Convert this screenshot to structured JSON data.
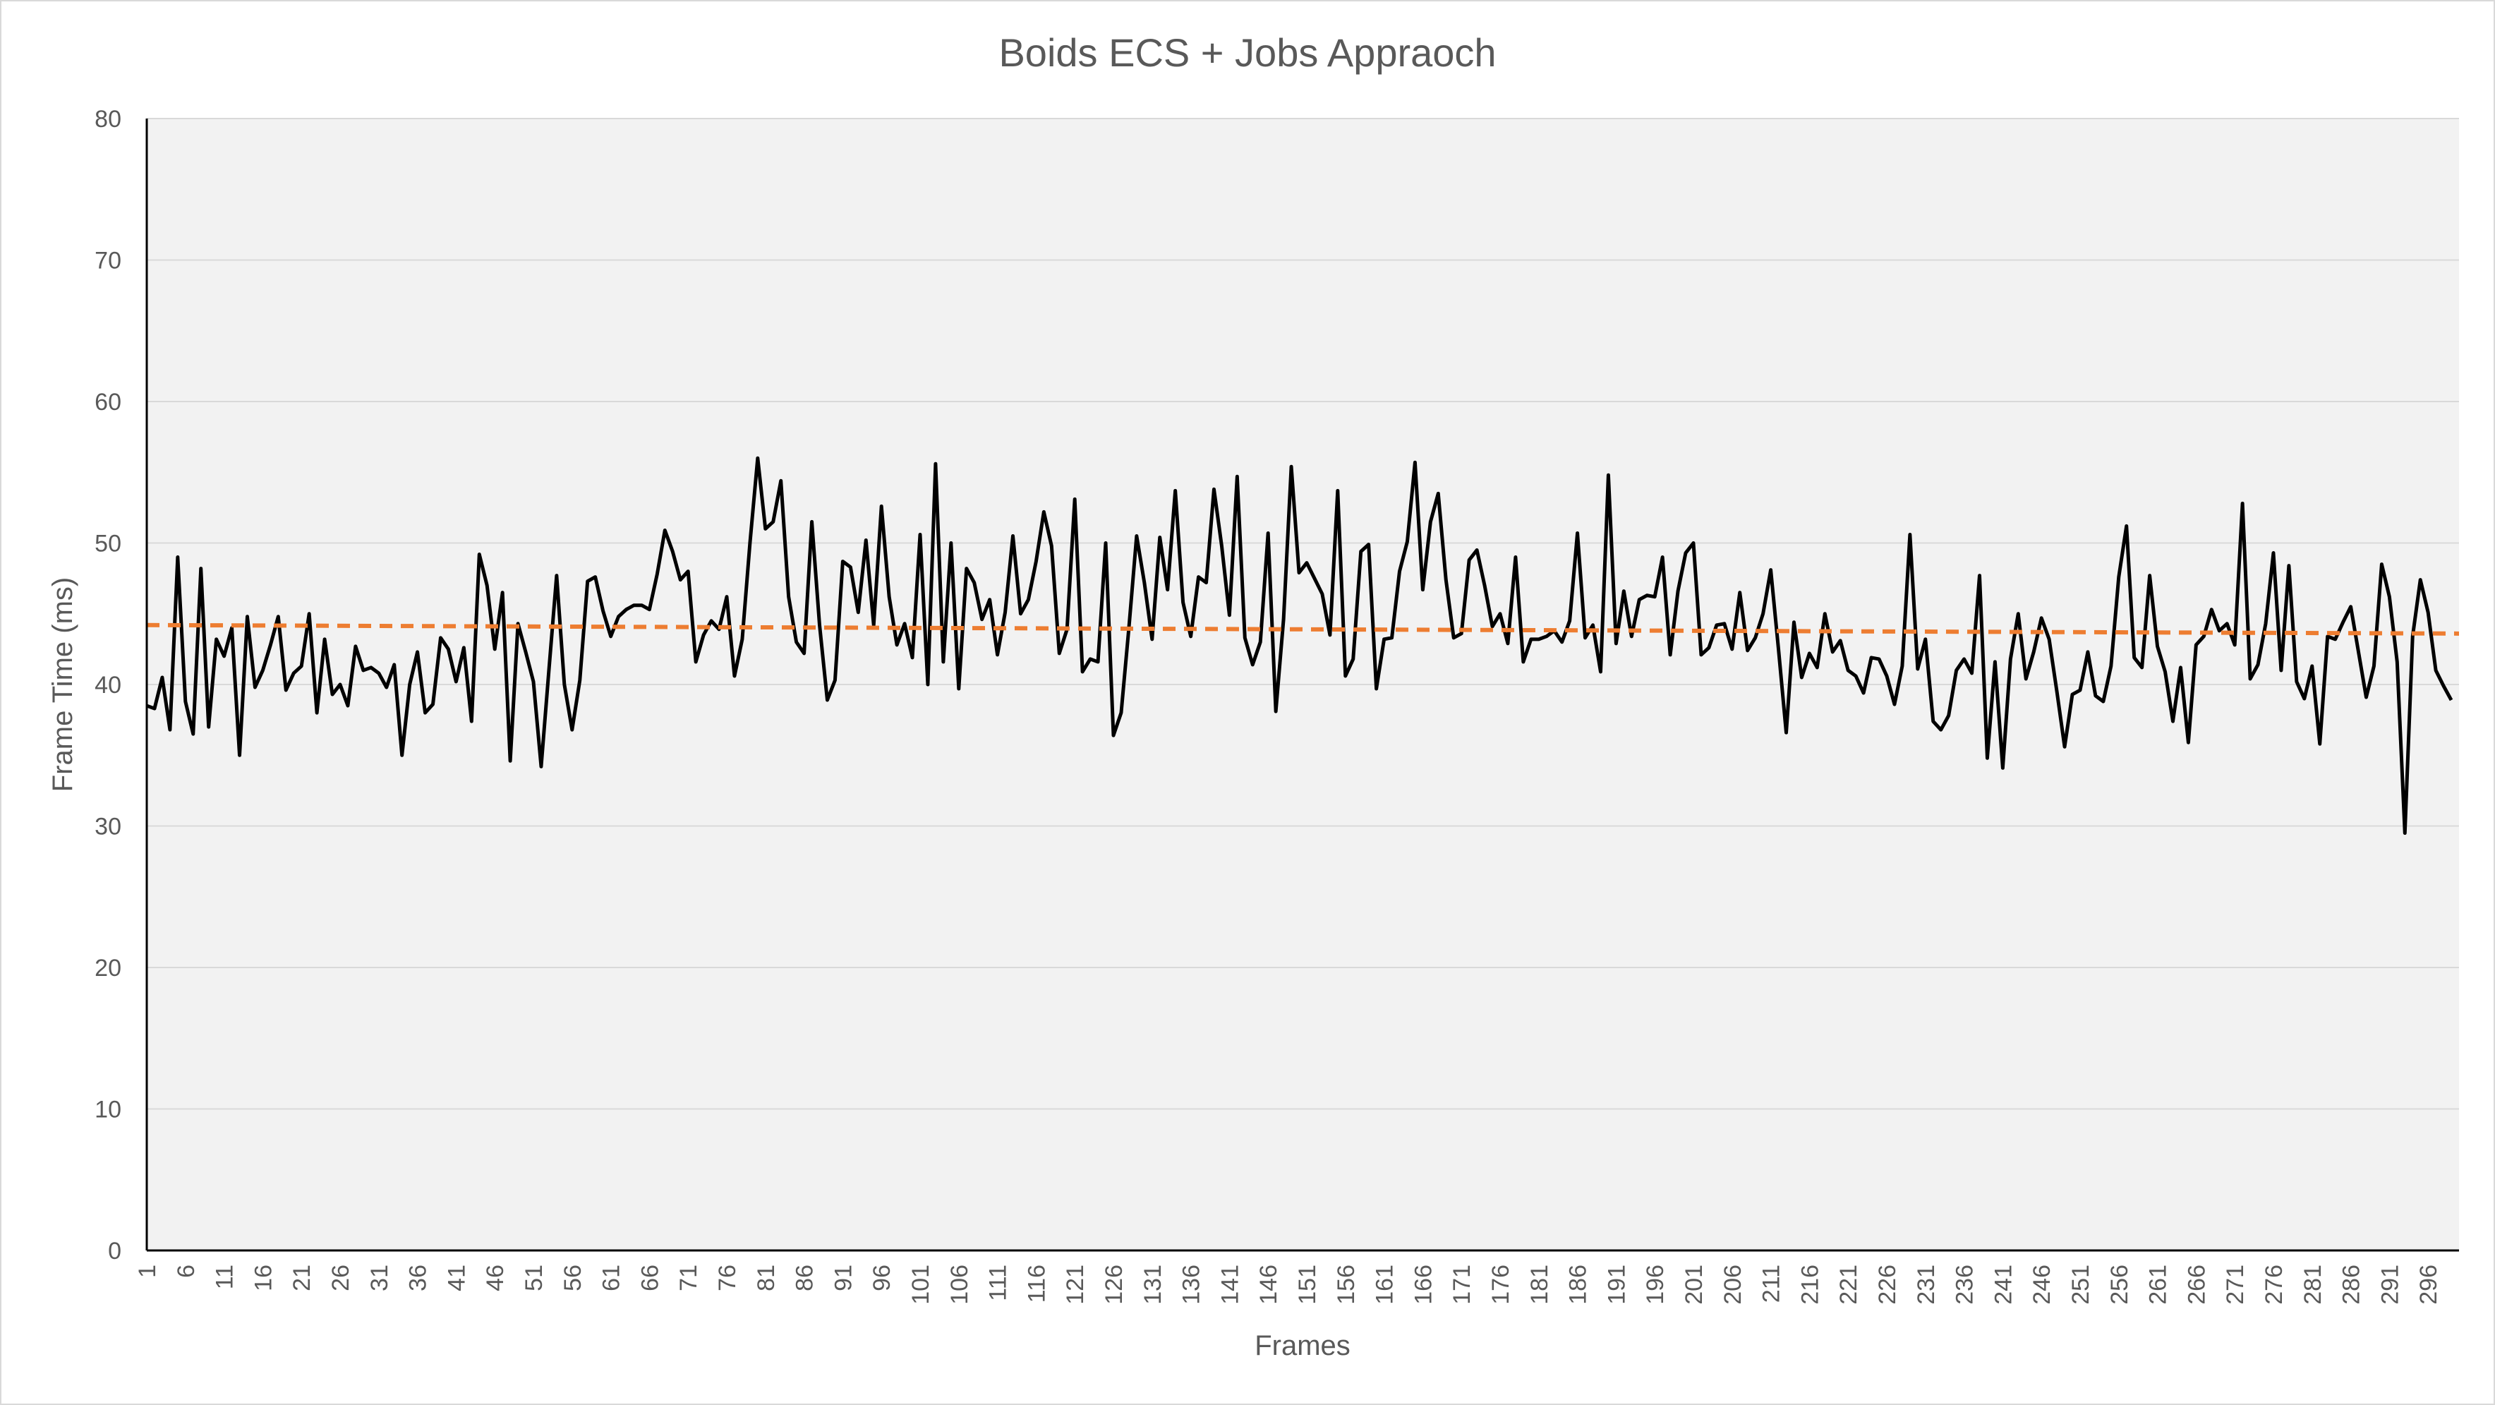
{
  "chart_data": {
    "type": "line",
    "title": "Boids ECS + Jobs Appraoch",
    "xlabel": "Frames",
    "ylabel": "Frame Time  (ms)",
    "ylim": [
      0,
      80
    ],
    "yticks": [
      0,
      10,
      20,
      30,
      40,
      50,
      60,
      70,
      80
    ],
    "xlim": [
      1,
      300
    ],
    "xticks": [
      1,
      6,
      11,
      16,
      21,
      26,
      31,
      36,
      41,
      46,
      51,
      56,
      61,
      66,
      71,
      76,
      81,
      86,
      91,
      96,
      101,
      106,
      111,
      116,
      121,
      126,
      131,
      136,
      141,
      146,
      151,
      156,
      161,
      166,
      171,
      176,
      181,
      186,
      191,
      196,
      201,
      206,
      211,
      216,
      221,
      226,
      231,
      236,
      241,
      246,
      251,
      256,
      261,
      266,
      271,
      276,
      281,
      286,
      291,
      296
    ],
    "grid": true,
    "legend": "none",
    "series": [
      {
        "style": "solid",
        "color": "#000000",
        "x_start": 1,
        "values": [
          38.5,
          38.3,
          40.5,
          36.8,
          49.0,
          38.8,
          36.5,
          48.2,
          37.0,
          43.2,
          42.0,
          44.0,
          35.0,
          44.8,
          39.8,
          41.0,
          42.8,
          44.8,
          39.6,
          40.8,
          41.3,
          45.0,
          38.0,
          43.2,
          39.3,
          40.0,
          38.5,
          42.7,
          41.0,
          41.2,
          40.8,
          39.8,
          41.4,
          35.0,
          40.0,
          42.3,
          38.0,
          38.6,
          43.3,
          42.5,
          40.2,
          42.6,
          37.4,
          49.2,
          47.0,
          42.5,
          46.5,
          34.6,
          44.3,
          42.3,
          40.2,
          34.2,
          41.0,
          47.7,
          40.0,
          36.8,
          40.3,
          47.3,
          47.6,
          45.2,
          43.4,
          44.8,
          45.3,
          45.6,
          45.6,
          45.3,
          47.8,
          50.9,
          49.4,
          47.4,
          48.0,
          41.6,
          43.5,
          44.5,
          43.9,
          46.2,
          40.6,
          43.2,
          50.0,
          56.0,
          51.0,
          51.5,
          54.4,
          46.2,
          43.0,
          42.2,
          51.5,
          44.2,
          38.9,
          40.3,
          48.7,
          48.3,
          45.1,
          50.2,
          44.2,
          52.6,
          46.2,
          42.8,
          44.3,
          41.9,
          50.6,
          40.0,
          55.6,
          41.6,
          50.0,
          39.7,
          48.2,
          47.2,
          44.6,
          46.0,
          42.1,
          45.1,
          50.5,
          45.0,
          46.0,
          48.7,
          52.2,
          49.8,
          42.2,
          43.9,
          53.1,
          40.9,
          41.8,
          41.6,
          50.0,
          36.4,
          38.0,
          44.0,
          50.5,
          47.2,
          43.2,
          50.4,
          46.7,
          53.7,
          45.8,
          43.4,
          47.6,
          47.2,
          53.8,
          49.8,
          44.9,
          54.7,
          43.3,
          41.4,
          43.0,
          50.7,
          38.1,
          44.6,
          55.4,
          47.9,
          48.6,
          47.5,
          46.4,
          43.5,
          53.7,
          40.6,
          41.8,
          49.4,
          49.9,
          39.7,
          43.2,
          43.3,
          48.0,
          50.1,
          55.7,
          46.7,
          51.5,
          53.5,
          47.4,
          43.3,
          43.6,
          48.8,
          49.5,
          47.0,
          44.1,
          45.0,
          42.9,
          49.0,
          41.6,
          43.2,
          43.2,
          43.4,
          43.8,
          43.0,
          44.5,
          50.7,
          43.3,
          44.2,
          40.9,
          54.8,
          42.9,
          46.6,
          43.4,
          46.0,
          46.3,
          46.2,
          49.0,
          42.1,
          46.6,
          49.3,
          50.0,
          42.1,
          42.6,
          44.2,
          44.3,
          42.5,
          46.5,
          42.4,
          43.3,
          45.0,
          48.1,
          42.5,
          36.6,
          44.4,
          40.5,
          42.2,
          41.2,
          45.0,
          42.3,
          43.1,
          41.0,
          40.6,
          39.4,
          41.9,
          41.8,
          40.6,
          38.6,
          41.3,
          50.6,
          41.1,
          43.2,
          37.4,
          36.8,
          37.8,
          41.0,
          41.8,
          40.8,
          47.7,
          34.8,
          41.6,
          34.1,
          41.8,
          45.0,
          40.4,
          42.3,
          44.7,
          43.2,
          39.5,
          35.6,
          39.3,
          39.6,
          42.3,
          39.2,
          38.8,
          41.3,
          47.6,
          51.2,
          41.9,
          41.2,
          47.7,
          42.7,
          40.9,
          37.4,
          41.2,
          35.9,
          42.8,
          43.4,
          45.3,
          43.8,
          44.3,
          42.8,
          52.8,
          40.4,
          41.4,
          44.3,
          49.3,
          41.0,
          48.4,
          40.2,
          39.0,
          41.3,
          35.8,
          43.4,
          43.2,
          44.4,
          45.5,
          42.3,
          39.1,
          41.3,
          48.5,
          46.2,
          41.6,
          29.5,
          43.4,
          47.4,
          45.1,
          41.0,
          39.9,
          38.9
        ]
      },
      {
        "style": "dashed",
        "color": "#ed7d31",
        "type": "trendline",
        "x": [
          1,
          300
        ],
        "values": [
          44.2,
          43.6
        ]
      }
    ]
  }
}
